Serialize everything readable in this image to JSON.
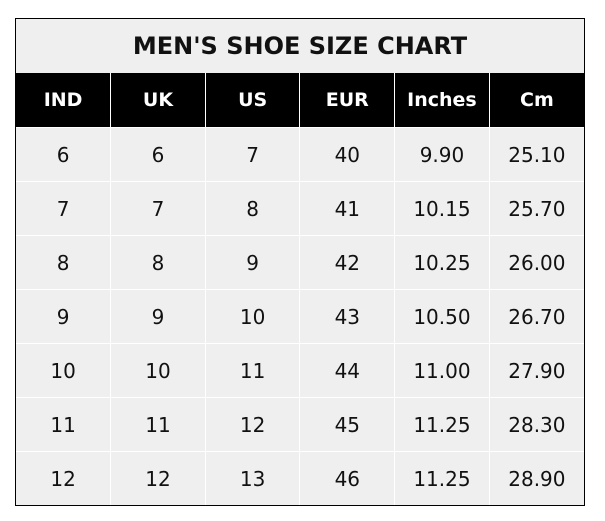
{
  "title": "MEN'S SHOE SIZE CHART",
  "columns": [
    "IND",
    "UK",
    "US",
    "EUR",
    "Inches",
    "Cm"
  ],
  "rows": [
    [
      "6",
      "6",
      "7",
      "40",
      "9.90",
      "25.10"
    ],
    [
      "7",
      "7",
      "8",
      "41",
      "10.15",
      "25.70"
    ],
    [
      "8",
      "8",
      "9",
      "42",
      "10.25",
      "26.00"
    ],
    [
      "9",
      "9",
      "10",
      "43",
      "10.50",
      "26.70"
    ],
    [
      "10",
      "10",
      "11",
      "44",
      "11.00",
      "27.90"
    ],
    [
      "11",
      "11",
      "12",
      "45",
      "11.25",
      "28.30"
    ],
    [
      "12",
      "12",
      "13",
      "46",
      "11.25",
      "28.90"
    ]
  ],
  "colors": {
    "header_bg": "#000000",
    "cell_bg": "#efefef",
    "grid": "#ffffff"
  }
}
